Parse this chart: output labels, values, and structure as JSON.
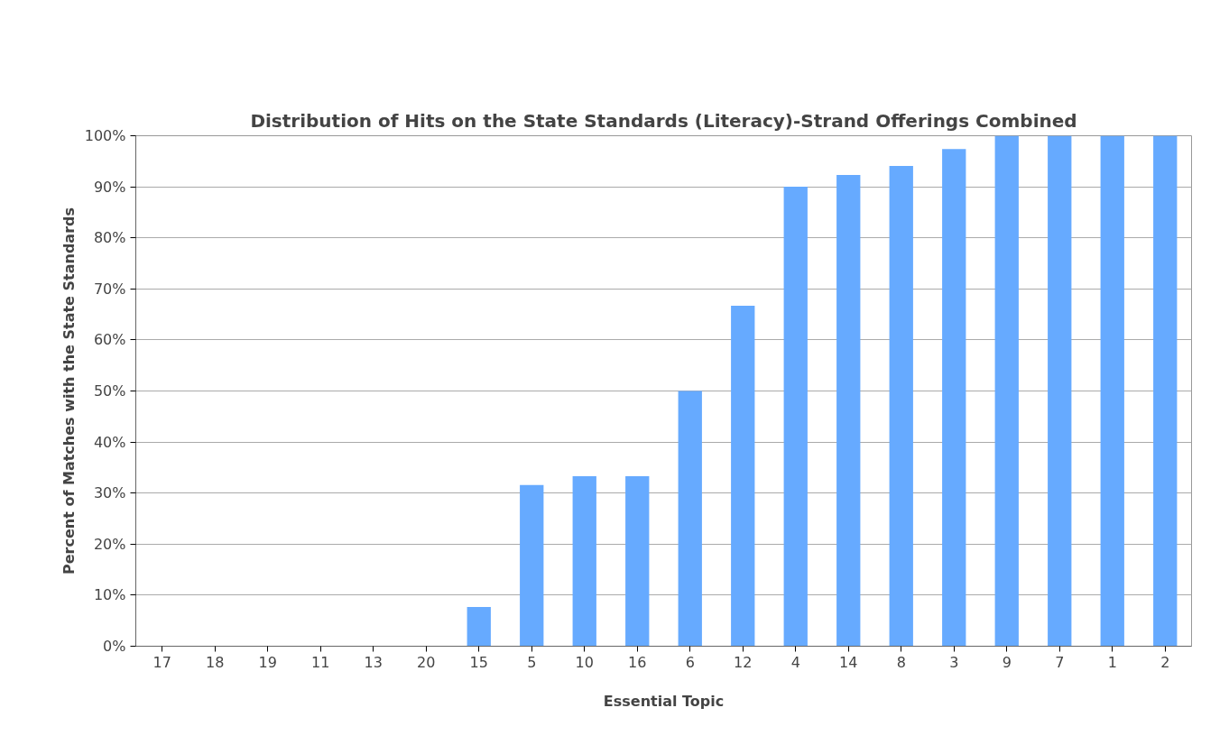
{
  "chart_data": {
    "type": "bar",
    "title": "Distribution of Hits on the State Standards (Literacy)-Strand Offerings Combined",
    "xlabel": "Essential Topic",
    "ylabel": "Percent of Matches with the State Standards",
    "categories": [
      "17",
      "18",
      "19",
      "11",
      "13",
      "20",
      "15",
      "5",
      "10",
      "16",
      "6",
      "12",
      "4",
      "14",
      "8",
      "3",
      "9",
      "7",
      "1",
      "2"
    ],
    "values": [
      0,
      0,
      0,
      0,
      0,
      0,
      7.7,
      31.6,
      33.3,
      33.3,
      50,
      66.7,
      90,
      92.3,
      94.1,
      97.4,
      100,
      100,
      100,
      100
    ],
    "color": "#66aaff",
    "ylim": [
      0,
      100
    ],
    "yticks": [
      {
        "value": 0,
        "label": "0%"
      },
      {
        "value": 10,
        "label": "10%"
      },
      {
        "value": 20,
        "label": "20%"
      },
      {
        "value": 30,
        "label": "30%"
      },
      {
        "value": 40,
        "label": "40%"
      },
      {
        "value": 50,
        "label": "50%"
      },
      {
        "value": 60,
        "label": "60%"
      },
      {
        "value": 70,
        "label": "70%"
      },
      {
        "value": 80,
        "label": "80%"
      },
      {
        "value": 90,
        "label": "90%"
      },
      {
        "value": 100,
        "label": "100%"
      }
    ],
    "grid": "y"
  }
}
